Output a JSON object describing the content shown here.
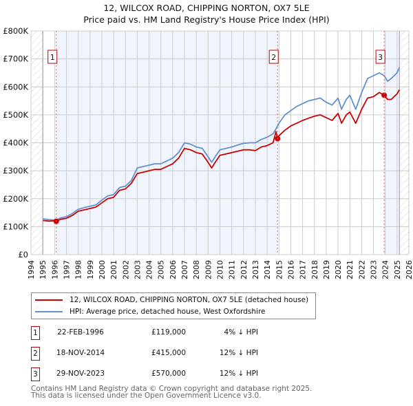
{
  "title": "12, WILCOX ROAD, CHIPPING NORTON, OX7 5LE",
  "subtitle": "Price paid vs. HM Land Registry's House Price Index (HPI)",
  "legend": [
    {
      "label": "12, WILCOX ROAD, CHIPPING NORTON, OX7 5LE (detached house)",
      "color": "#cc0000"
    },
    {
      "label": "HPI: Average price, detached house, West Oxfordshire",
      "color": "#6090d0"
    }
  ],
  "sales": [
    {
      "num": "1",
      "date": "22-FEB-1996",
      "price": "£119,000",
      "hpi": "4% ↓ HPI"
    },
    {
      "num": "2",
      "date": "18-NOV-2014",
      "price": "£415,000",
      "hpi": "12% ↓ HPI"
    },
    {
      "num": "3",
      "date": "29-NOV-2023",
      "price": "£570,000",
      "hpi": "12% ↓ HPI"
    }
  ],
  "footer": {
    "line1": "Contains HM Land Registry data © Crown copyright and database right 2025.",
    "line2": "This data is licensed under the Open Government Licence v3.0."
  },
  "chart_data": {
    "type": "line",
    "title": "12, WILCOX ROAD, CHIPPING NORTON, OX7 5LE",
    "subtitle": "Price paid vs. HM Land Registry's House Price Index (HPI)",
    "xlabel": "",
    "ylabel": "",
    "xlim": [
      1994,
      2026
    ],
    "ylim": [
      0,
      800000
    ],
    "grid": true,
    "x_ticks": [
      "1994",
      "1995",
      "1996",
      "1997",
      "1998",
      "1999",
      "2000",
      "2001",
      "2002",
      "2003",
      "2004",
      "2005",
      "2006",
      "2007",
      "2008",
      "2009",
      "2010",
      "2011",
      "2012",
      "2013",
      "2014",
      "2015",
      "2016",
      "2017",
      "2018",
      "2019",
      "2020",
      "2021",
      "2022",
      "2023",
      "2024",
      "2025",
      "2026"
    ],
    "y_ticks": [
      "£0",
      "£100K",
      "£200K",
      "£300K",
      "£400K",
      "£500K",
      "£600K",
      "£700K",
      "£800K"
    ],
    "y_tick_values": [
      0,
      100000,
      200000,
      300000,
      400000,
      500000,
      600000,
      700000,
      800000
    ],
    "data_range": [
      1995.0,
      2025.2
    ],
    "shaded_spans": [
      [
        1996.14,
        2014.88
      ],
      [
        2023.91,
        2025.2
      ]
    ],
    "sale_markers": [
      {
        "label": "1",
        "x": 1996.14,
        "y": 119000
      },
      {
        "label": "2",
        "x": 2014.88,
        "y": 415000
      },
      {
        "label": "3",
        "x": 2023.91,
        "y": 570000
      }
    ],
    "series": [
      {
        "name": "12, WILCOX ROAD, CHIPPING NORTON, OX7 5LE (detached house)",
        "color": "#cc0000",
        "x": [
          1995.0,
          1995.5,
          1996.0,
          1996.14,
          1996.5,
          1997.0,
          1997.5,
          1998.0,
          1998.5,
          1999.0,
          1999.5,
          2000.0,
          2000.5,
          2001.0,
          2001.5,
          2002.0,
          2002.5,
          2003.0,
          2003.5,
          2004.0,
          2004.5,
          2005.0,
          2005.5,
          2006.0,
          2006.5,
          2007.0,
          2007.5,
          2008.0,
          2008.5,
          2009.0,
          2009.3,
          2009.6,
          2010.0,
          2010.5,
          2011.0,
          2011.5,
          2012.0,
          2012.5,
          2013.0,
          2013.5,
          2014.0,
          2014.5,
          2014.75,
          2014.88,
          2015.0,
          2015.5,
          2016.0,
          2016.5,
          2017.0,
          2017.5,
          2018.0,
          2018.5,
          2019.0,
          2019.5,
          2020.0,
          2020.3,
          2020.7,
          2021.0,
          2021.5,
          2022.0,
          2022.5,
          2023.0,
          2023.5,
          2023.91,
          2024.2,
          2024.5,
          2025.0,
          2025.2
        ],
        "y": [
          122000,
          120000,
          121000,
          119000,
          126000,
          130000,
          140000,
          155000,
          160000,
          165000,
          170000,
          185000,
          200000,
          205000,
          230000,
          235000,
          255000,
          290000,
          295000,
          300000,
          305000,
          305000,
          315000,
          325000,
          345000,
          380000,
          375000,
          365000,
          360000,
          330000,
          310000,
          330000,
          355000,
          360000,
          365000,
          370000,
          375000,
          375000,
          372000,
          385000,
          390000,
          400000,
          440000,
          415000,
          425000,
          445000,
          460000,
          470000,
          480000,
          488000,
          495000,
          500000,
          490000,
          480000,
          505000,
          470000,
          500000,
          510000,
          470000,
          520000,
          560000,
          565000,
          580000,
          570000,
          555000,
          555000,
          575000,
          590000
        ]
      },
      {
        "name": "HPI: Average price, detached house, West Oxfordshire",
        "color": "#6090d0",
        "x": [
          1995.0,
          1995.5,
          1996.0,
          1996.14,
          1996.5,
          1997.0,
          1997.5,
          1998.0,
          1998.5,
          1999.0,
          1999.5,
          2000.0,
          2000.5,
          2001.0,
          2001.5,
          2002.0,
          2002.5,
          2003.0,
          2003.5,
          2004.0,
          2004.5,
          2005.0,
          2005.5,
          2006.0,
          2006.5,
          2007.0,
          2007.5,
          2008.0,
          2008.5,
          2009.0,
          2009.3,
          2009.6,
          2010.0,
          2010.5,
          2011.0,
          2011.5,
          2012.0,
          2012.5,
          2013.0,
          2013.5,
          2014.0,
          2014.5,
          2014.75,
          2014.88,
          2015.0,
          2015.5,
          2016.0,
          2016.5,
          2017.0,
          2017.5,
          2018.0,
          2018.5,
          2019.0,
          2019.5,
          2020.0,
          2020.3,
          2020.7,
          2021.0,
          2021.5,
          2022.0,
          2022.5,
          2023.0,
          2023.5,
          2023.91,
          2024.2,
          2024.5,
          2025.0,
          2025.2
        ],
        "y": [
          128000,
          125000,
          124000,
          124000,
          131000,
          136000,
          147000,
          162000,
          168000,
          173000,
          178000,
          195000,
          210000,
          215000,
          240000,
          245000,
          265000,
          310000,
          315000,
          320000,
          325000,
          325000,
          335000,
          345000,
          365000,
          400000,
          395000,
          385000,
          380000,
          350000,
          330000,
          350000,
          375000,
          380000,
          385000,
          392000,
          398000,
          400000,
          400000,
          412000,
          420000,
          432000,
          450000,
          460000,
          470000,
          500000,
          515000,
          530000,
          540000,
          550000,
          555000,
          560000,
          545000,
          535000,
          560000,
          520000,
          555000,
          570000,
          520000,
          580000,
          630000,
          640000,
          650000,
          640000,
          620000,
          630000,
          650000,
          670000
        ]
      }
    ]
  }
}
